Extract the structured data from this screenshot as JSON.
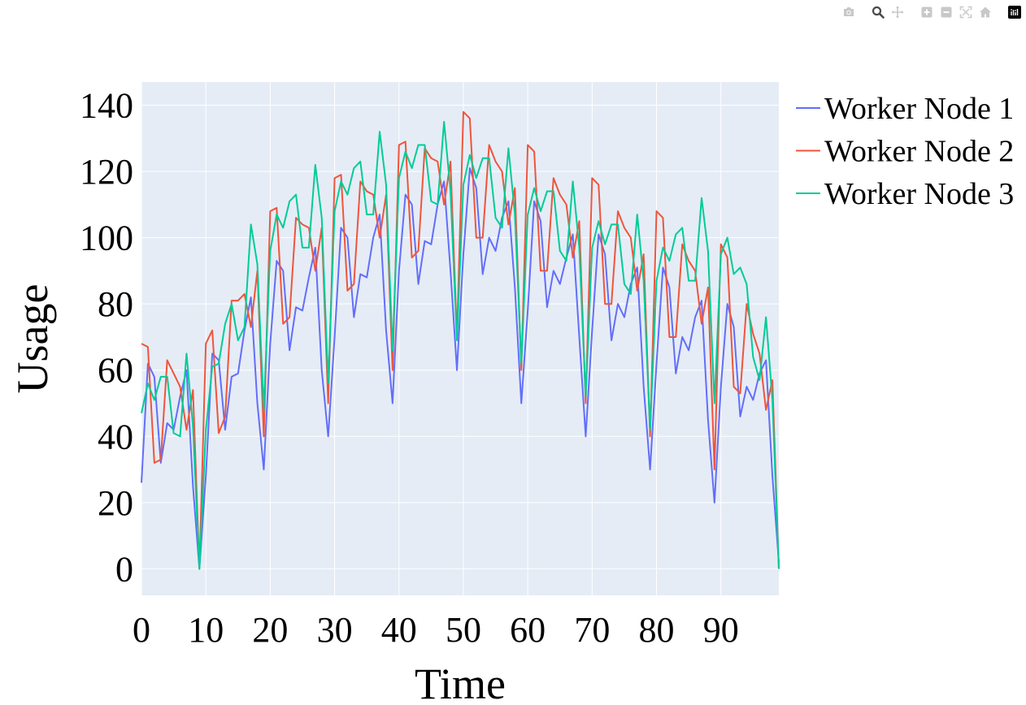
{
  "modebar": {
    "buttons": [
      {
        "name": "camera-icon",
        "label": "Download plot as a png"
      },
      {
        "name": "zoom-icon",
        "label": "Zoom"
      },
      {
        "name": "pan-icon",
        "label": "Pan"
      },
      {
        "name": "zoom-in-icon",
        "label": "Zoom in"
      },
      {
        "name": "zoom-out-icon",
        "label": "Zoom out"
      },
      {
        "name": "autoscale-icon",
        "label": "Autoscale"
      },
      {
        "name": "reset-axes-icon",
        "label": "Reset axes"
      },
      {
        "name": "plotly-logo-icon",
        "label": "Produced with Plotly"
      }
    ]
  },
  "chart_data": {
    "type": "line",
    "title": "",
    "xlabel": "Time",
    "ylabel": "Usage",
    "xlim": [
      0,
      99
    ],
    "ylim": [
      -8,
      147
    ],
    "xticks": [
      0,
      10,
      20,
      30,
      40,
      50,
      60,
      70,
      80,
      90
    ],
    "yticks": [
      0,
      20,
      40,
      60,
      80,
      100,
      120,
      140
    ],
    "grid": true,
    "legend_position": "right",
    "plot_background": "#e5ecf6",
    "x": [
      0,
      1,
      2,
      3,
      4,
      5,
      6,
      7,
      8,
      9,
      10,
      11,
      12,
      13,
      14,
      15,
      16,
      17,
      18,
      19,
      20,
      21,
      22,
      23,
      24,
      25,
      26,
      27,
      28,
      29,
      30,
      31,
      32,
      33,
      34,
      35,
      36,
      37,
      38,
      39,
      40,
      41,
      42,
      43,
      44,
      45,
      46,
      47,
      48,
      49,
      50,
      51,
      52,
      53,
      54,
      55,
      56,
      57,
      58,
      59,
      60,
      61,
      62,
      63,
      64,
      65,
      66,
      67,
      68,
      69,
      70,
      71,
      72,
      73,
      74,
      75,
      76,
      77,
      78,
      79,
      80,
      81,
      82,
      83,
      84,
      85,
      86,
      87,
      88,
      89,
      90,
      91,
      92,
      93,
      94,
      95,
      96,
      97,
      98,
      99
    ],
    "series": [
      {
        "name": "Worker Node 1",
        "color": "#636efa",
        "values": [
          26,
          62,
          58,
          32,
          44,
          42,
          52,
          60,
          25,
          0,
          28,
          65,
          63,
          42,
          58,
          59,
          72,
          82,
          50,
          30,
          68,
          93,
          90,
          66,
          79,
          78,
          88,
          97,
          60,
          40,
          70,
          103,
          100,
          76,
          89,
          88,
          100,
          107,
          72,
          50,
          90,
          113,
          110,
          86,
          99,
          98,
          110,
          117,
          90,
          60,
          95,
          121,
          115,
          89,
          100,
          96,
          106,
          111,
          85,
          50,
          78,
          111,
          105,
          79,
          90,
          86,
          94,
          101,
          70,
          40,
          72,
          101,
          95,
          69,
          80,
          76,
          86,
          91,
          55,
          30,
          62,
          91,
          85,
          59,
          70,
          66,
          76,
          81,
          45,
          20,
          55,
          80,
          73,
          46,
          55,
          51,
          59,
          63,
          28,
          2
        ]
      },
      {
        "name": "Worker Node 2",
        "color": "#ef553b",
        "values": [
          68,
          67,
          32,
          33,
          63,
          59,
          55,
          42,
          54,
          0,
          68,
          72,
          41,
          46,
          81,
          81,
          83,
          73,
          90,
          40,
          108,
          109,
          74,
          76,
          106,
          104,
          103,
          90,
          103,
          50,
          118,
          119,
          84,
          86,
          117,
          114,
          113,
          100,
          113,
          60,
          128,
          129,
          94,
          96,
          127,
          124,
          123,
          110,
          123,
          70,
          138,
          136,
          100,
          100,
          128,
          123,
          120,
          104,
          115,
          60,
          128,
          126,
          90,
          90,
          118,
          113,
          110,
          94,
          105,
          50,
          118,
          116,
          80,
          80,
          108,
          103,
          100,
          84,
          95,
          40,
          108,
          106,
          70,
          70,
          98,
          93,
          90,
          74,
          85,
          30,
          98,
          94,
          55,
          53,
          80,
          71,
          65,
          48,
          57,
          0
        ]
      },
      {
        "name": "Worker Node 3",
        "color": "#00cc96",
        "values": [
          47,
          56,
          51,
          58,
          58,
          41,
          40,
          65,
          43,
          0,
          42,
          61,
          62,
          74,
          80,
          69,
          73,
          104,
          92,
          48,
          96,
          107,
          103,
          111,
          113,
          97,
          97,
          122,
          106,
          56,
          108,
          117,
          113,
          121,
          123,
          107,
          107,
          132,
          116,
          66,
          118,
          126,
          121,
          128,
          128,
          111,
          110,
          135,
          114,
          69,
          116,
          125,
          118,
          124,
          124,
          106,
          103,
          127,
          107,
          62,
          107,
          115,
          108,
          114,
          114,
          96,
          93,
          117,
          97,
          52,
          97,
          105,
          98,
          104,
          104,
          86,
          83,
          107,
          87,
          42,
          87,
          97,
          93,
          101,
          103,
          87,
          87,
          112,
          96,
          50,
          95,
          100,
          89,
          91,
          86,
          64,
          57,
          76,
          51,
          0
        ]
      }
    ]
  }
}
